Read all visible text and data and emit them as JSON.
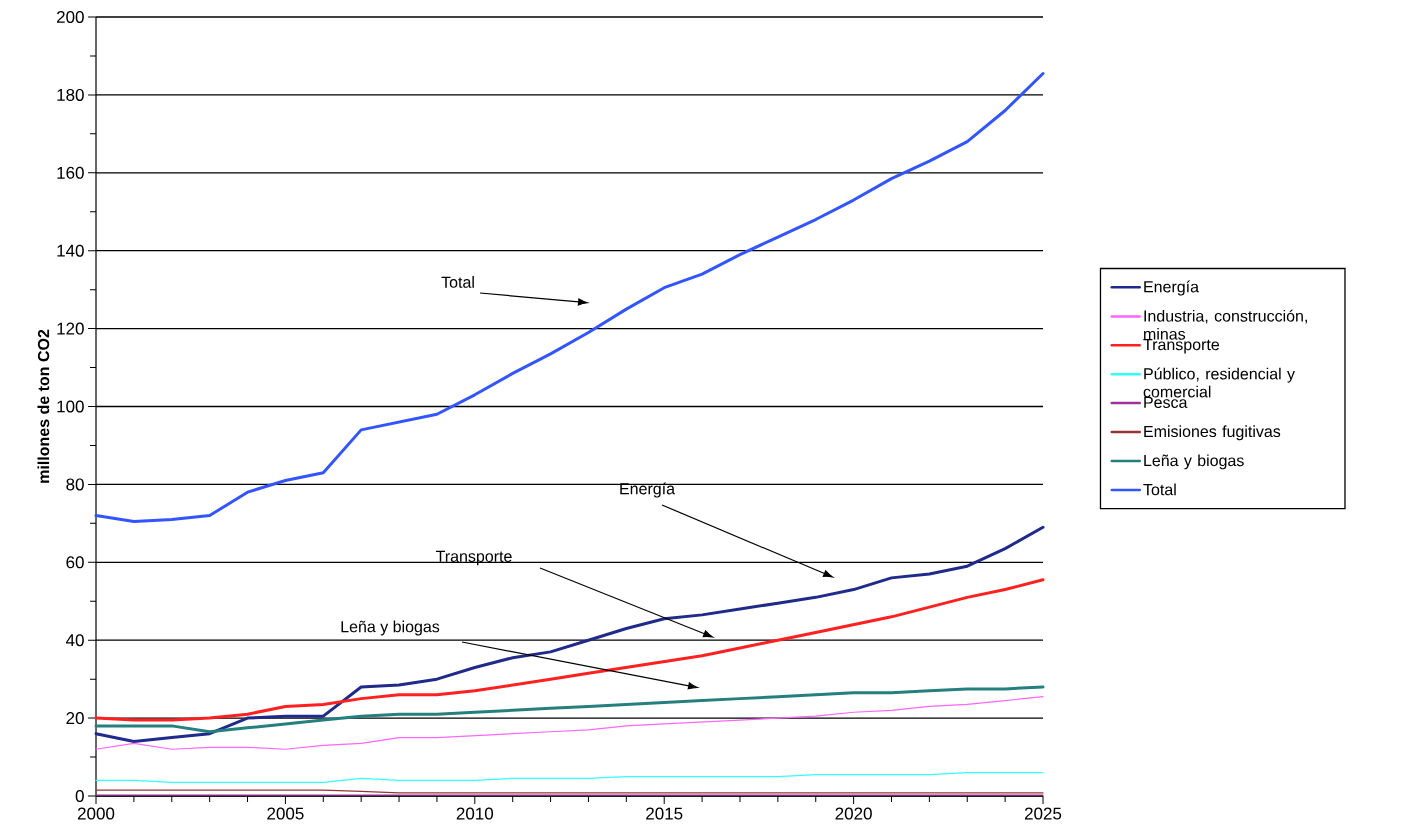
{
  "chart_data": {
    "type": "line",
    "ylabel": "millones de ton CO2",
    "x": [
      2000,
      2001,
      2002,
      2003,
      2004,
      2005,
      2006,
      2007,
      2008,
      2009,
      2010,
      2011,
      2012,
      2013,
      2014,
      2015,
      2016,
      2017,
      2018,
      2019,
      2020,
      2021,
      2022,
      2023,
      2024,
      2025
    ],
    "xlim": [
      2000,
      2025
    ],
    "xticks": [
      2000,
      {
        "value": 2001,
        "label": null
      },
      {
        "value": 2002,
        "label": null
      },
      {
        "value": 2003,
        "label": null
      },
      {
        "value": 2004,
        "label": null
      },
      2005,
      {
        "value": 2006,
        "label": null
      },
      {
        "value": 2007,
        "label": null
      },
      {
        "value": 2008,
        "label": null
      },
      {
        "value": 2009,
        "label": null
      },
      2010,
      {
        "value": 2011,
        "label": null
      },
      {
        "value": 2012,
        "label": null
      },
      {
        "value": 2013,
        "label": null
      },
      {
        "value": 2014,
        "label": null
      },
      2015,
      {
        "value": 2016,
        "label": null
      },
      {
        "value": 2017,
        "label": null
      },
      {
        "value": 2018,
        "label": null
      },
      {
        "value": 2019,
        "label": null
      },
      2020,
      {
        "value": 2021,
        "label": null
      },
      {
        "value": 2022,
        "label": null
      },
      {
        "value": 2023,
        "label": null
      },
      {
        "value": 2024,
        "label": null
      },
      2025
    ],
    "ylim": [
      0,
      200
    ],
    "yticks": [
      0,
      {
        "value": 10,
        "label": null
      },
      20,
      {
        "value": 30,
        "label": null
      },
      40,
      {
        "value": 50,
        "label": null
      },
      60,
      {
        "value": 70,
        "label": null
      },
      80,
      {
        "value": 90,
        "label": null
      },
      100,
      {
        "value": 110,
        "label": null
      },
      120,
      {
        "value": 130,
        "label": null
      },
      140,
      {
        "value": 150,
        "label": null
      },
      160,
      {
        "value": 170,
        "label": null
      },
      180,
      {
        "value": 190,
        "label": null
      },
      200
    ],
    "grid": "y",
    "legend": "right",
    "marker": "none",
    "line_style": "solid",
    "series": [
      {
        "name": "Energía",
        "color": "#1f2a8a",
        "values": [
          16,
          14,
          15,
          16,
          20,
          20.5,
          20.5,
          28,
          28.5,
          30,
          33,
          35.5,
          37,
          40,
          43,
          45.5,
          46.5,
          48,
          49.5,
          51,
          53,
          56,
          57,
          59,
          63.5,
          69
        ]
      },
      {
        "name": "Industria, construcción, minas",
        "color": "#ff66ff",
        "values": [
          12,
          13.5,
          12,
          12.5,
          12.5,
          12,
          13,
          13.5,
          15,
          15,
          15.5,
          16,
          16.5,
          17,
          18,
          18.5,
          19,
          19.5,
          20,
          20.5,
          21.5,
          22,
          23,
          23.5,
          24.5,
          25.5
        ]
      },
      {
        "name": "Transporte",
        "color": "#ff2020",
        "values": [
          20,
          19.5,
          19.5,
          20,
          21,
          23,
          23.5,
          25,
          26,
          26,
          27,
          28.5,
          30,
          31.5,
          33,
          34.5,
          36,
          38,
          40,
          42,
          44,
          46,
          48.5,
          51,
          53,
          55.5
        ]
      },
      {
        "name": "Público, residencial y comercial",
        "color": "#33ffff",
        "values": [
          4,
          4,
          3.5,
          3.5,
          3.5,
          3.5,
          3.5,
          4.5,
          4,
          4,
          4,
          4.5,
          4.5,
          4.5,
          5,
          5,
          5,
          5,
          5,
          5.5,
          5.5,
          5.5,
          5.5,
          6,
          6,
          6
        ]
      },
      {
        "name": "Pesca",
        "color": "#993399",
        "values": [
          0.2,
          0.2,
          0.2,
          0.2,
          0.2,
          0.2,
          0.2,
          0.2,
          0.2,
          0.2,
          0.2,
          0.2,
          0.2,
          0.2,
          0.2,
          0.2,
          0.2,
          0.2,
          0.2,
          0.2,
          0.2,
          0.2,
          0.2,
          0.2,
          0.2,
          0.2
        ]
      },
      {
        "name": "Emisiones fugitivas",
        "color": "#993333",
        "values": [
          1.5,
          1.5,
          1.5,
          1.5,
          1.5,
          1.5,
          1.5,
          1.2,
          0.8,
          0.8,
          0.8,
          0.8,
          0.8,
          0.8,
          0.8,
          0.8,
          0.8,
          0.8,
          0.8,
          0.8,
          0.8,
          0.8,
          0.8,
          0.8,
          0.8,
          0.8
        ]
      },
      {
        "name": "Leña y biogas",
        "color": "#267f7f",
        "values": [
          18,
          18,
          18,
          16.5,
          17.5,
          18.5,
          19.5,
          20.5,
          21,
          21,
          21.5,
          22,
          22.5,
          23,
          23.5,
          24,
          24.5,
          25,
          25.5,
          26,
          26.5,
          26.5,
          27,
          27.5,
          27.5,
          28
        ]
      },
      {
        "name": "Total",
        "color": "#3355ff",
        "values": [
          72,
          70.5,
          71,
          72,
          78,
          81,
          83,
          94,
          96,
          98,
          103,
          108.5,
          113.5,
          119,
          125,
          130.5,
          134,
          139,
          143.5,
          148,
          153,
          158.5,
          163,
          168,
          176,
          185.5
        ]
      }
    ],
    "annotations": [
      "Total",
      "Energía",
      "Transporte",
      "Leña y biogas"
    ]
  }
}
